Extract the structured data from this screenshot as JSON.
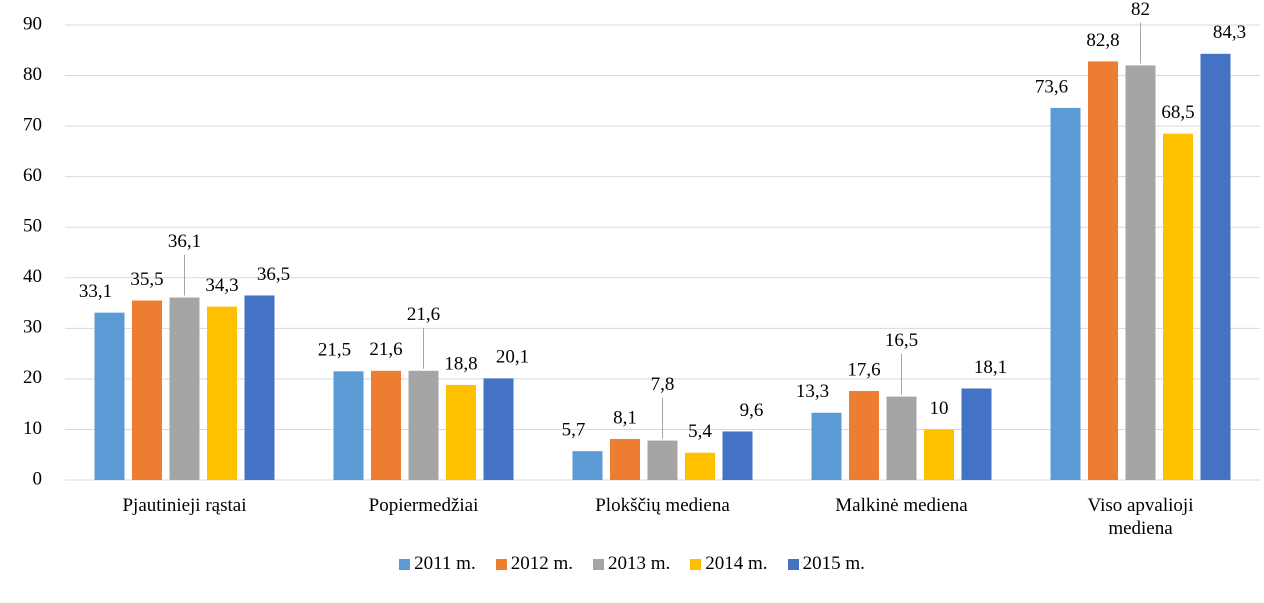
{
  "chart_data": {
    "type": "bar",
    "categories": [
      "Pjautinieji rąstai",
      "Popiermedžiai",
      "Plokščių mediena",
      "Malkinė mediena",
      "Viso apvalioji mediena"
    ],
    "series": [
      {
        "name": "2011 m.",
        "color": "#5b9bd5",
        "values": [
          33.1,
          21.5,
          5.7,
          13.3,
          73.6
        ],
        "value_labels": [
          "33,1",
          "21,5",
          "5,7",
          "13,3",
          "73,6"
        ]
      },
      {
        "name": "2012 m.",
        "color": "#ed7d31",
        "values": [
          35.5,
          21.6,
          8.1,
          17.6,
          82.8
        ],
        "value_labels": [
          "35,5",
          "21,6",
          "8,1",
          "17,6",
          "82,8"
        ]
      },
      {
        "name": "2013 m.",
        "color": "#a5a5a5",
        "values": [
          36.1,
          21.6,
          7.8,
          16.5,
          82
        ],
        "value_labels": [
          "36,1",
          "21,6",
          "7,8",
          "16,5",
          "82"
        ]
      },
      {
        "name": "2014 m.",
        "color": "#ffc000",
        "values": [
          34.3,
          18.8,
          5.4,
          10,
          68.5
        ],
        "value_labels": [
          "34,3",
          "18,8",
          "5,4",
          "10",
          "68,5"
        ]
      },
      {
        "name": "2015 m.",
        "color": "#4472c4",
        "values": [
          36.5,
          20.1,
          9.6,
          18.1,
          84.3
        ],
        "value_labels": [
          "36,5",
          "20,1",
          "9,6",
          "18,1",
          "84,3"
        ]
      }
    ],
    "ylim": [
      0,
      90
    ],
    "yticks": [
      0,
      10,
      20,
      30,
      40,
      50,
      60,
      70,
      80,
      90
    ],
    "grid": true,
    "legend": "bottom"
  }
}
